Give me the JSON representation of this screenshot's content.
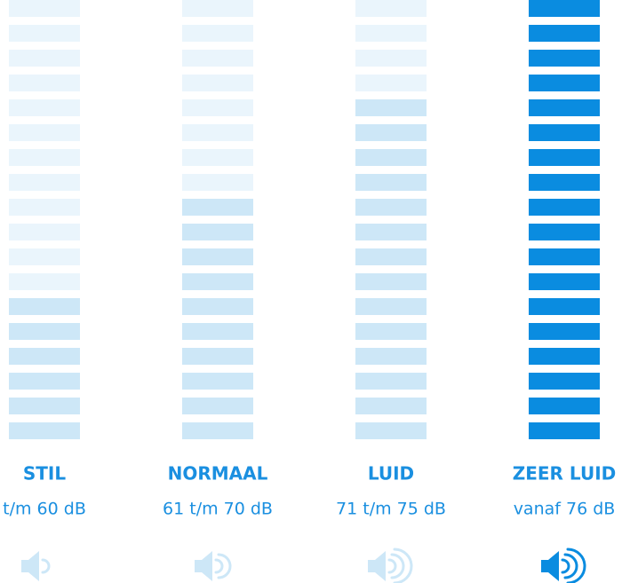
{
  "segments": 18,
  "off_color": "#eaf5fc",
  "columns": [
    {
      "label": "STIL",
      "range": "t/m 60 dB",
      "level": 6,
      "color": "#cde7f7"
    },
    {
      "label": "NORMAAL",
      "range": "61 t/m 70 dB",
      "level": 10,
      "color": "#cde7f7"
    },
    {
      "label": "LUID",
      "range": "71 t/m 75 dB",
      "level": 14,
      "color": "#cde7f7"
    },
    {
      "label": "ZEER LUID",
      "range": "vanaf 76 dB",
      "level": 18,
      "color": "#0a8ce0"
    }
  ]
}
